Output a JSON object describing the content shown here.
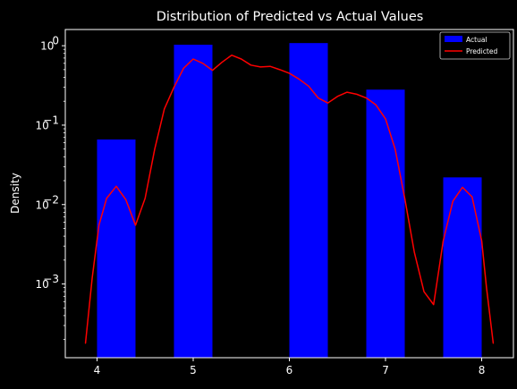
{
  "chart_data": {
    "type": "bar",
    "title": "Distribution of Predicted vs Actual Values",
    "xlabel": "",
    "ylabel": "Density",
    "xlim": [
      3.67,
      8.33
    ],
    "ylim": [
      0.000118,
      1.6
    ],
    "yscale": "log",
    "grid": false,
    "legend": "top-right",
    "background": "#000000",
    "xticks": [
      4,
      5,
      6,
      7,
      8
    ],
    "xtick_labels": [
      "4",
      "5",
      "6",
      "7",
      "8"
    ],
    "yticks": [
      0.001,
      0.01,
      0.1,
      1
    ],
    "ytick_labels": [
      "10",
      "10",
      "10",
      "10"
    ],
    "ytick_exponents": [
      "−3",
      "−2",
      "−1",
      "0"
    ],
    "bars": {
      "name": "Actual",
      "color": "#0000ff",
      "bins": [
        {
          "x0": 4.0,
          "x1": 4.4,
          "value": 0.066
        },
        {
          "x0": 4.8,
          "x1": 5.2,
          "value": 1.03
        },
        {
          "x0": 6.0,
          "x1": 6.4,
          "value": 1.08
        },
        {
          "x0": 6.8,
          "x1": 7.2,
          "value": 0.28
        },
        {
          "x0": 7.6,
          "x1": 8.0,
          "value": 0.022
        }
      ]
    },
    "line": {
      "name": "Predicted",
      "color": "#ff0000",
      "points": [
        [
          3.88,
          0.00018
        ],
        [
          3.95,
          0.0012
        ],
        [
          4.02,
          0.0055
        ],
        [
          4.1,
          0.012
        ],
        [
          4.2,
          0.017
        ],
        [
          4.3,
          0.0115
        ],
        [
          4.4,
          0.0055
        ],
        [
          4.5,
          0.012
        ],
        [
          4.6,
          0.05
        ],
        [
          4.7,
          0.16
        ],
        [
          4.8,
          0.3
        ],
        [
          4.9,
          0.52
        ],
        [
          5.0,
          0.68
        ],
        [
          5.1,
          0.6
        ],
        [
          5.2,
          0.49
        ],
        [
          5.3,
          0.62
        ],
        [
          5.4,
          0.76
        ],
        [
          5.5,
          0.68
        ],
        [
          5.6,
          0.57
        ],
        [
          5.7,
          0.54
        ],
        [
          5.8,
          0.55
        ],
        [
          5.9,
          0.5
        ],
        [
          6.0,
          0.45
        ],
        [
          6.1,
          0.38
        ],
        [
          6.2,
          0.31
        ],
        [
          6.3,
          0.22
        ],
        [
          6.4,
          0.19
        ],
        [
          6.5,
          0.23
        ],
        [
          6.6,
          0.26
        ],
        [
          6.7,
          0.245
        ],
        [
          6.8,
          0.22
        ],
        [
          6.9,
          0.18
        ],
        [
          7.0,
          0.12
        ],
        [
          7.1,
          0.05
        ],
        [
          7.2,
          0.012
        ],
        [
          7.3,
          0.0025
        ],
        [
          7.4,
          0.0008
        ],
        [
          7.5,
          0.00055
        ],
        [
          7.6,
          0.0035
        ],
        [
          7.7,
          0.011
        ],
        [
          7.8,
          0.0165
        ],
        [
          7.9,
          0.0125
        ],
        [
          8.0,
          0.0035
        ],
        [
          8.05,
          0.0009
        ],
        [
          8.12,
          0.00018
        ]
      ]
    }
  }
}
